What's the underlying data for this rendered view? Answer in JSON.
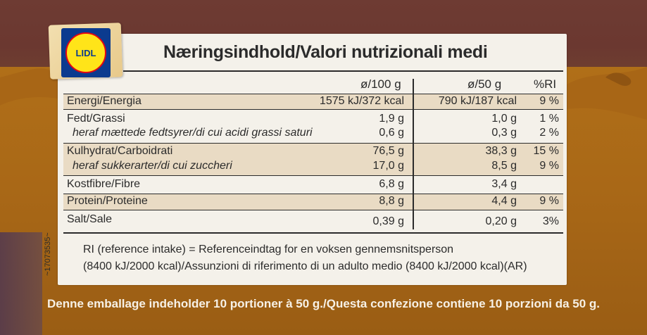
{
  "logo": {
    "text": "LIDL"
  },
  "title": "Næringsindhold/Valori nutrizionali medi",
  "columns": {
    "per100": "ø/100 g",
    "per50": "ø/50 g",
    "ri": "%RI"
  },
  "rows": [
    {
      "label": "Energi/Energia",
      "italic": false,
      "per100": "1575 kJ/372 kcal",
      "per50": "790 kJ/187 kcal",
      "ri": "9 %"
    },
    {
      "label": "Fedt/Grassi",
      "italic": false,
      "per100": "1,9 g",
      "per50": "1,0 g",
      "ri": "1 %"
    },
    {
      "label": "heraf mættede fedtsyrer/di cui acidi grassi saturi",
      "italic": true,
      "per100": "0,6 g",
      "per50": "0,3 g",
      "ri": "2 %"
    },
    {
      "label": "Kulhydrat/Carboidrati",
      "italic": false,
      "per100": "76,5 g",
      "per50": "38,3 g",
      "ri": "15 %"
    },
    {
      "label": "heraf sukkerarter/di cui zuccheri",
      "italic": true,
      "per100": "17,0 g",
      "per50": "8,5 g",
      "ri": "9 %"
    },
    {
      "label": "Kostfibre/Fibre",
      "italic": false,
      "per100": "6,8 g",
      "per50": "3,4 g",
      "ri": ""
    },
    {
      "label": "Protein/Proteine",
      "italic": false,
      "per100": "8,8 g",
      "per50": "4,4 g",
      "ri": "9 %"
    },
    {
      "label": "Salt/Sale",
      "italic": false,
      "per100": "0,39 g",
      "per50": "0,20 g",
      "ri": "3%"
    }
  ],
  "footnote": {
    "line1": "RI (reference intake) = Referenceindtag for en voksen gennemsnitsperson",
    "line2": "(8400 kJ/2000 kcal)/Assunzioni di riferimento di un adulto medio (8400 kJ/2000 kcal)(AR)"
  },
  "code": "~17073535~",
  "package_note": "Denne emballage indeholder 10 portioner à 50 g./Questa confezione contiene 10 porzioni da 50 g.",
  "colors": {
    "panel": "#f4f1ea",
    "shade": "#e9dbc4",
    "background_top": "#6b3830",
    "background_bottom": "#a96817",
    "logo_blue": "#0b3b8f",
    "logo_yellow": "#ffe419",
    "logo_red": "#e30613"
  }
}
